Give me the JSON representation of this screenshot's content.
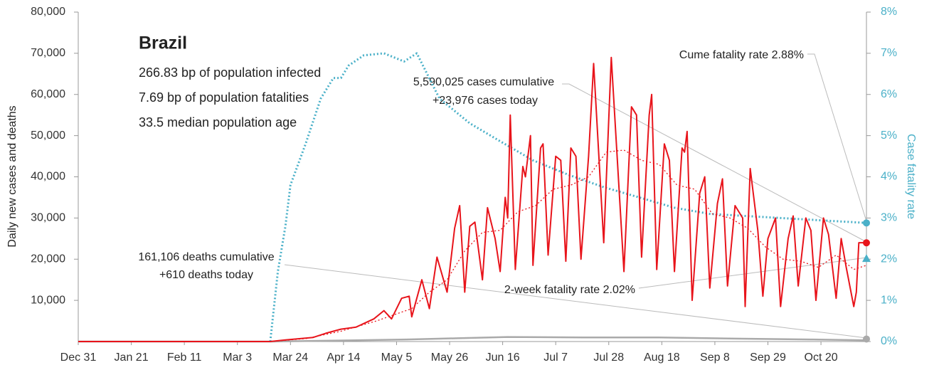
{
  "chart_data": {
    "type": "line",
    "title": "Brazil",
    "info": [
      "266.83 bp of population infected",
      "7.69 bp of population fatalities",
      "33.5 median population age"
    ],
    "y_label": "Daily new cases and deaths",
    "y2_label": "Case fatality rate",
    "xlim": [
      0,
      312
    ],
    "xticks": [
      {
        "value": 0,
        "label": "Dec 31"
      },
      {
        "value": 21,
        "label": "Jan 21"
      },
      {
        "value": 42,
        "label": "Feb 11"
      },
      {
        "value": 63,
        "label": "Mar 3"
      },
      {
        "value": 84,
        "label": "Mar 24"
      },
      {
        "value": 105,
        "label": "Apr 14"
      },
      {
        "value": 126,
        "label": "May 5"
      },
      {
        "value": 147,
        "label": "May 26"
      },
      {
        "value": 168,
        "label": "Jun 16"
      },
      {
        "value": 189,
        "label": "Jul 7"
      },
      {
        "value": 210,
        "label": "Jul 28"
      },
      {
        "value": 231,
        "label": "Aug 18"
      },
      {
        "value": 252,
        "label": "Sep 8"
      },
      {
        "value": 273,
        "label": "Sep 29"
      },
      {
        "value": 294,
        "label": "Oct 20"
      }
    ],
    "ylim": [
      0,
      80000
    ],
    "yticks": [
      {
        "value": 10000,
        "label": "10,000"
      },
      {
        "value": 20000,
        "label": "20,000"
      },
      {
        "value": 30000,
        "label": "30,000"
      },
      {
        "value": 40000,
        "label": "40,000"
      },
      {
        "value": 50000,
        "label": "50,000"
      },
      {
        "value": 60000,
        "label": "60,000"
      },
      {
        "value": 70000,
        "label": "70,000"
      },
      {
        "value": 80000,
        "label": "80,000"
      }
    ],
    "y2lim": [
      0,
      8
    ],
    "y2ticks": [
      {
        "value": 0,
        "label": "0%"
      },
      {
        "value": 1,
        "label": "1%"
      },
      {
        "value": 2,
        "label": "2%"
      },
      {
        "value": 3,
        "label": "3%"
      },
      {
        "value": 4,
        "label": "4%"
      },
      {
        "value": 5,
        "label": "5%"
      },
      {
        "value": 6,
        "label": "6%"
      },
      {
        "value": 7,
        "label": "7%"
      },
      {
        "value": 8,
        "label": "8%"
      }
    ],
    "grid": false,
    "series": [
      {
        "color": "#aaaaaa",
        "style": "solid",
        "width": 2.5,
        "x": [
          0,
          76,
          100,
          130,
          150,
          170,
          200,
          230,
          260,
          290,
          312
        ],
        "values": [
          0,
          0,
          200,
          500,
          800,
          1100,
          1000,
          1000,
          700,
          500,
          300
        ]
      },
      {
        "color": "#4ab0c8",
        "style": "dotted",
        "width": 3,
        "axis": "y2",
        "x": [
          76,
          79,
          82,
          84,
          90,
          96,
          101,
          104,
          107,
          113,
          121,
          129,
          134,
          143,
          155,
          166,
          180,
          194,
          208,
          222,
          236,
          250,
          278,
          312
        ],
        "values": [
          0,
          1.7,
          2.8,
          3.8,
          4.8,
          5.9,
          6.4,
          6.4,
          6.7,
          6.95,
          7.0,
          6.8,
          7.0,
          5.9,
          5.3,
          4.9,
          4.4,
          4.05,
          3.75,
          3.5,
          3.25,
          3.1,
          3.0,
          2.88
        ]
      },
      {
        "color": "#e8141b",
        "style": "dotted",
        "width": 1.3,
        "x": [
          0,
          76,
          90,
          104,
          118,
          132,
          139,
          146,
          153,
          160,
          167,
          174,
          181,
          188,
          195,
          202,
          209,
          216,
          223,
          230,
          237,
          244,
          251,
          258,
          265,
          272,
          279,
          286,
          293,
          300,
          307,
          312
        ],
        "values": [
          0,
          0,
          700,
          2500,
          5000,
          8000,
          12000,
          15000,
          22000,
          26500,
          27000,
          31500,
          33000,
          37000,
          38000,
          40000,
          46000,
          46500,
          44000,
          43000,
          38000,
          37000,
          31000,
          30000,
          27500,
          23000,
          20000,
          19500,
          18000,
          21000,
          17500,
          18500
        ]
      },
      {
        "color": "#e8141b",
        "style": "solid",
        "width": 2,
        "x": [
          0,
          76,
          82,
          93,
          98,
          104,
          110,
          117,
          121,
          124,
          128,
          131,
          132,
          136,
          139,
          142,
          146,
          149,
          151,
          153,
          155,
          157,
          160,
          162,
          165,
          167,
          169,
          170,
          171,
          173,
          176,
          177,
          179,
          180,
          183,
          184,
          186,
          189,
          191,
          193,
          195,
          197,
          199,
          202,
          204,
          208,
          211,
          216,
          219,
          221,
          223,
          226,
          227,
          229,
          232,
          234,
          236,
          239,
          240,
          241,
          243,
          246,
          248,
          250,
          253,
          255,
          257,
          260,
          263,
          264,
          266,
          269,
          271,
          273,
          276,
          278,
          281,
          283,
          285,
          288,
          290,
          292,
          295,
          297,
          300,
          302,
          304,
          307,
          308,
          309,
          312
        ],
        "values": [
          0,
          0,
          400,
          1000,
          2000,
          3000,
          3500,
          5500,
          7500,
          5500,
          10500,
          11000,
          6000,
          15000,
          8000,
          20500,
          12000,
          27500,
          33000,
          12000,
          28000,
          29000,
          15000,
          32500,
          25000,
          17000,
          35000,
          30000,
          55000,
          17500,
          42500,
          40000,
          50000,
          18500,
          47000,
          48000,
          21000,
          45000,
          44000,
          19500,
          47000,
          45000,
          20000,
          45000,
          67500,
          24000,
          69000,
          17000,
          57000,
          55000,
          20500,
          55000,
          60000,
          17500,
          48000,
          44000,
          17000,
          47000,
          46000,
          51000,
          10000,
          36000,
          40000,
          13000,
          33500,
          39500,
          13500,
          33000,
          30000,
          8500,
          42000,
          27000,
          11000,
          25000,
          30000,
          8500,
          25000,
          30500,
          13500,
          30000,
          27000,
          10000,
          30000,
          26000,
          10500,
          25000,
          18000,
          8500,
          12000,
          24000,
          24000
        ]
      }
    ],
    "markers": {
      "x": 312,
      "cases_today": 23976,
      "deaths_today": 610,
      "cume_rate": 2.88,
      "two_week_rate": 2.02
    },
    "annotations": [
      {
        "lines": [
          "5,590,025 cases cumulative",
          "+23,976 cases today"
        ]
      },
      {
        "lines": [
          "Cume fatality rate 2.88%"
        ]
      },
      {
        "lines": [
          "161,106 deaths cumulative",
          "+610 deaths today"
        ]
      },
      {
        "lines": [
          "2-week fatality rate 2.02%"
        ]
      }
    ]
  }
}
